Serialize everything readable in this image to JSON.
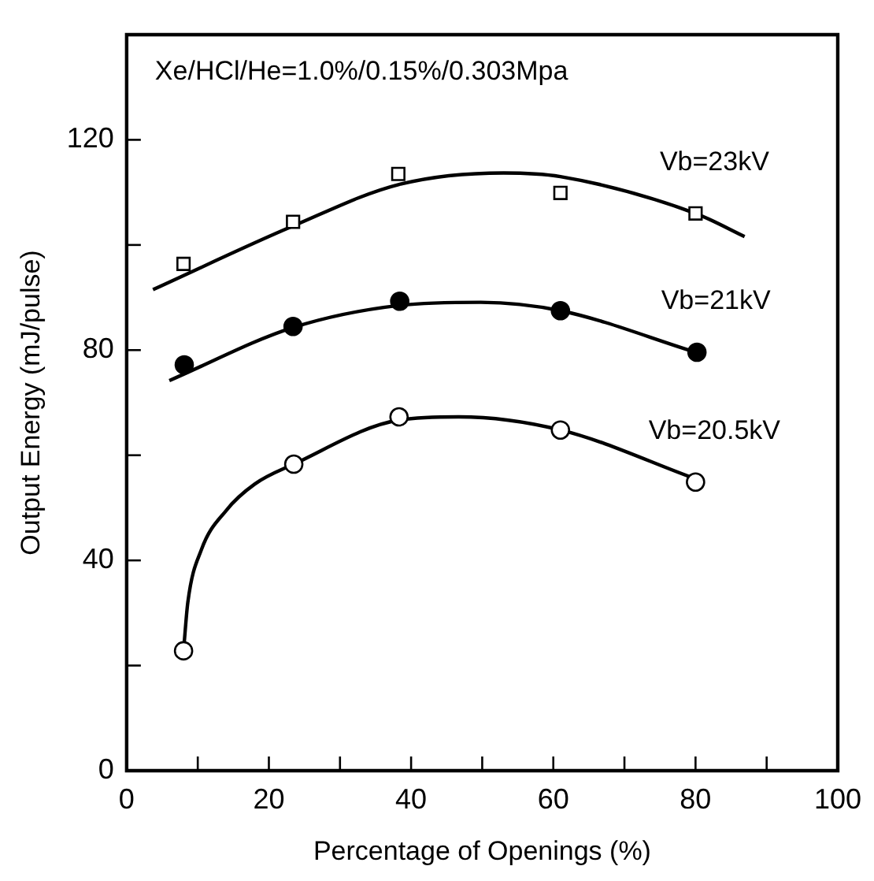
{
  "chart_data": {
    "type": "scatter",
    "xlabel": "Percentage of Openings (%)",
    "ylabel": "Output Energy (mJ/pulse)",
    "xlim": [
      0,
      100
    ],
    "xticks": [
      0,
      {
        "value": 10,
        "label": null
      },
      20,
      {
        "value": 30,
        "label": null
      },
      40,
      {
        "value": 50,
        "label": null
      },
      60,
      {
        "value": 70,
        "label": null
      },
      80,
      {
        "value": 90,
        "label": null
      },
      100
    ],
    "ylim": [
      0,
      140
    ],
    "yticks": [
      0,
      {
        "value": 20,
        "label": null
      },
      40,
      {
        "value": 60,
        "label": null
      },
      80,
      {
        "value": 100,
        "label": null
      },
      120
    ],
    "grid": false,
    "legend": false,
    "series": [
      {
        "name": "Vb=23kV",
        "marker": "square",
        "color": "#ffffff",
        "x": [
          8,
          23.4,
          38.2,
          61,
          80
        ],
        "values": [
          96.4,
          104.4,
          113.5,
          109.9,
          106
        ]
      },
      {
        "name": "Vb=21kV",
        "marker": "circle",
        "color": "#000000",
        "x": [
          8.1,
          23.4,
          38.4,
          61,
          80.2
        ],
        "values": [
          77.2,
          84.5,
          89.3,
          87.5,
          79.6
        ]
      },
      {
        "name": "Vb=20.5kV",
        "marker": "circle",
        "color": "#ffffff",
        "x": [
          8,
          23.5,
          38.3,
          61,
          80
        ],
        "values": [
          22.8,
          58.3,
          67.3,
          64.8,
          54.9
        ]
      },
      {
        "type": "line",
        "marker": "none",
        "color": "#000000",
        "x": [
          3.7,
          23.4,
          38.3,
          53,
          61,
          80,
          86.9
        ],
        "values": [
          91.5,
          103.6,
          111.5,
          113.7,
          113,
          106,
          101.6
        ]
      },
      {
        "type": "line",
        "marker": "none",
        "color": "#000000",
        "x": [
          6,
          23.4,
          38.3,
          49.8,
          61,
          80
        ],
        "values": [
          74.2,
          84.3,
          88.5,
          89.1,
          87.5,
          79.6
        ]
      },
      {
        "type": "line",
        "marker": "none",
        "color": "#000000",
        "x": [
          8,
          8.6,
          10.5,
          14,
          18,
          23.5,
          38.3,
          46.7,
          61,
          80
        ],
        "values": [
          22.8,
          32,
          42,
          49.5,
          54.5,
          58.3,
          66.7,
          67.3,
          64.8,
          55.5
        ]
      }
    ],
    "annotations": [
      "Xe/HCl/He=1.0%/0.15%/0.303Mpa"
    ]
  }
}
